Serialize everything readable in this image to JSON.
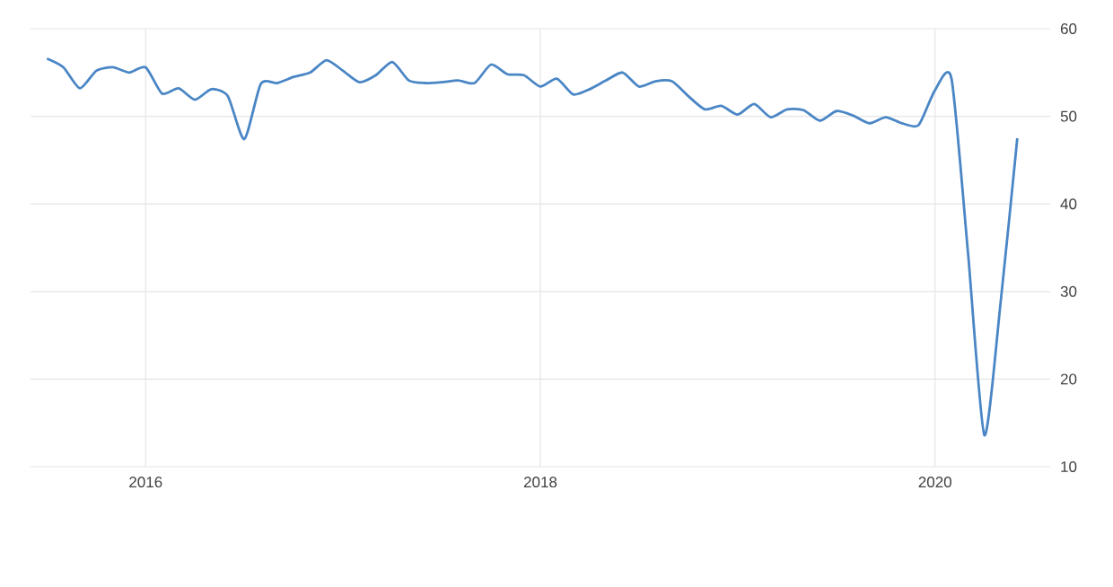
{
  "chart_data": {
    "type": "line",
    "x": [
      "2015-07",
      "2015-08",
      "2015-09",
      "2015-10",
      "2015-11",
      "2015-12",
      "2016-01",
      "2016-02",
      "2016-03",
      "2016-04",
      "2016-05",
      "2016-06",
      "2016-07",
      "2016-08",
      "2016-09",
      "2016-10",
      "2016-11",
      "2016-12",
      "2017-01",
      "2017-02",
      "2017-03",
      "2017-04",
      "2017-05",
      "2017-06",
      "2017-07",
      "2017-08",
      "2017-09",
      "2017-10",
      "2017-11",
      "2017-12",
      "2018-01",
      "2018-02",
      "2018-03",
      "2018-04",
      "2018-05",
      "2018-06",
      "2018-07",
      "2018-08",
      "2018-09",
      "2018-10",
      "2018-11",
      "2018-12",
      "2019-01",
      "2019-02",
      "2019-03",
      "2019-04",
      "2019-05",
      "2019-06",
      "2019-07",
      "2019-08",
      "2019-09",
      "2019-10",
      "2019-11",
      "2019-12",
      "2020-01",
      "2020-02",
      "2020-03",
      "2020-04",
      "2020-05",
      "2020-06"
    ],
    "series": [
      {
        "color": "#4a86c5",
        "values": [
          56.6,
          55.6,
          53.2,
          55.2,
          55.6,
          55.0,
          55.6,
          52.6,
          53.2,
          51.9,
          53.1,
          52.3,
          47.4,
          53.7,
          53.8,
          54.5,
          55.0,
          56.4,
          55.2,
          53.9,
          54.7,
          56.2,
          54.1,
          53.8,
          53.9,
          54.1,
          53.8,
          55.9,
          54.8,
          54.7,
          53.4,
          54.3,
          52.5,
          53.1,
          54.1,
          55.0,
          53.4,
          54.0,
          54.0,
          52.3,
          50.8,
          51.2,
          50.2,
          51.4,
          49.9,
          50.8,
          50.7,
          49.5,
          50.6,
          50.1,
          49.2,
          49.9,
          49.2,
          49.0,
          53.0,
          54.3,
          34.5,
          13.6,
          29.0,
          47.5
        ]
      }
    ],
    "xlim": [
      "2015-06",
      "2020-08"
    ],
    "xticks": [
      {
        "value": "2016",
        "label": "2016"
      },
      {
        "value": "2018",
        "label": "2018"
      },
      {
        "value": "2020",
        "label": "2020"
      }
    ],
    "ylim": [
      10,
      60
    ],
    "yticks": [
      10,
      20,
      30,
      40,
      50,
      60
    ],
    "grid": true,
    "marker": "none",
    "line_style": "solid"
  }
}
